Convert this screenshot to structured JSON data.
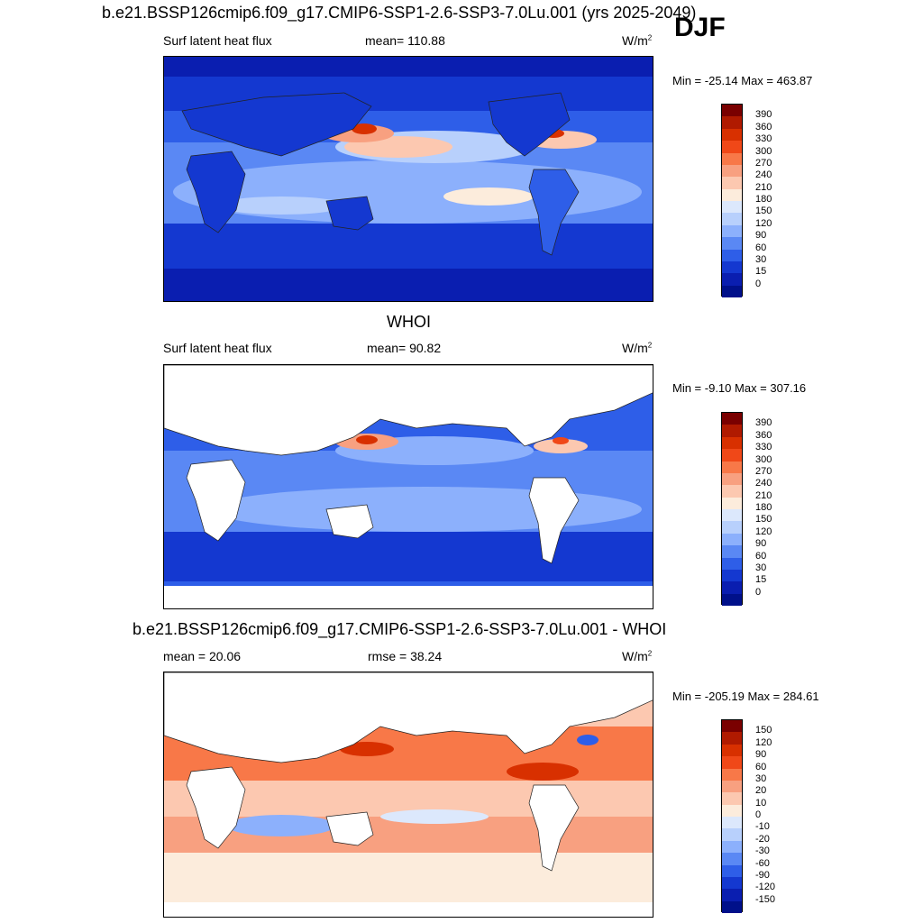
{
  "header": {
    "title": "b.e21.BSSP126cmip6.f09_g17.CMIP6-SSP1-2.6-SSP3-7.0Lu.001 (yrs 2025-2049)",
    "season": "DJF"
  },
  "panels": [
    {
      "id": "model",
      "left_label": "Surf latent heat flux",
      "center_label": "mean= 110.88",
      "units": "W/m",
      "units_sup": "2",
      "minmax": "Min = -25.14 Max = 463.87",
      "colorbar_ticks": [
        "390",
        "360",
        "330",
        "300",
        "270",
        "240",
        "210",
        "180",
        "150",
        "120",
        "90",
        "60",
        "30",
        "15",
        "0"
      ],
      "colorbar_colors": [
        "#7a0000",
        "#b01a00",
        "#d83000",
        "#f04818",
        "#f87848",
        "#f8a080",
        "#fcc8b0",
        "#fcecdc",
        "#dce8fc",
        "#b8d0fc",
        "#8cb0fc",
        "#5a88f4",
        "#2e5ee8",
        "#1438d0",
        "#0a1eb0",
        "#00108a"
      ]
    },
    {
      "id": "obs",
      "title": "WHOI",
      "left_label": "Surf latent heat flux",
      "center_label": "mean=  90.82",
      "units": "W/m",
      "units_sup": "2",
      "minmax": "Min =  -9.10 Max = 307.16",
      "colorbar_ticks": [
        "390",
        "360",
        "330",
        "300",
        "270",
        "240",
        "210",
        "180",
        "150",
        "120",
        "90",
        "60",
        "30",
        "15",
        "0"
      ],
      "colorbar_colors": [
        "#7a0000",
        "#b01a00",
        "#d83000",
        "#f04818",
        "#f87848",
        "#f8a080",
        "#fcc8b0",
        "#fcecdc",
        "#dce8fc",
        "#b8d0fc",
        "#8cb0fc",
        "#5a88f4",
        "#2e5ee8",
        "#1438d0",
        "#0a1eb0",
        "#00108a"
      ]
    },
    {
      "id": "diff",
      "title": "b.e21.BSSP126cmip6.f09_g17.CMIP6-SSP1-2.6-SSP3-7.0Lu.001 - WHOI",
      "left_label": "mean =  20.06",
      "center_label": "rmse =  38.24",
      "units": "W/m",
      "units_sup": "2",
      "minmax": "Min = -205.19 Max = 284.61",
      "colorbar_ticks": [
        "150",
        "120",
        "90",
        "60",
        "30",
        "20",
        "10",
        "0",
        "-10",
        "-20",
        "-30",
        "-60",
        "-90",
        "-120",
        "-150"
      ],
      "colorbar_colors": [
        "#7a0000",
        "#b01a00",
        "#d83000",
        "#f04818",
        "#f87848",
        "#f8a080",
        "#fcc8b0",
        "#fcecdc",
        "#dce8fc",
        "#b8d0fc",
        "#8cb0fc",
        "#5a88f4",
        "#2e5ee8",
        "#1438d0",
        "#0a1eb0",
        "#00108a"
      ]
    }
  ],
  "chart_data": [
    {
      "type": "heatmap",
      "title": "b.e21.BSSP126cmip6.f09_g17.CMIP6-SSP1-2.6-SSP3-7.0Lu.001 (yrs 2025-2049)",
      "variable": "Surf latent heat flux",
      "season": "DJF",
      "units": "W/m2",
      "mean": 110.88,
      "min": -25.14,
      "max": 463.87,
      "contour_levels": [
        0,
        15,
        30,
        60,
        90,
        120,
        150,
        180,
        210,
        240,
        270,
        300,
        330,
        360,
        390
      ]
    },
    {
      "type": "heatmap",
      "title": "WHOI",
      "variable": "Surf latent heat flux",
      "units": "W/m2",
      "mean": 90.82,
      "min": -9.1,
      "max": 307.16,
      "contour_levels": [
        0,
        15,
        30,
        60,
        90,
        120,
        150,
        180,
        210,
        240,
        270,
        300,
        330,
        360,
        390
      ]
    },
    {
      "type": "heatmap",
      "title": "b.e21.BSSP126cmip6.f09_g17.CMIP6-SSP1-2.6-SSP3-7.0Lu.001 - WHOI",
      "units": "W/m2",
      "mean": 20.06,
      "rmse": 38.24,
      "min": -205.19,
      "max": 284.61,
      "contour_levels": [
        -150,
        -120,
        -90,
        -60,
        -30,
        -20,
        -10,
        0,
        10,
        20,
        30,
        60,
        90,
        120,
        150
      ]
    }
  ]
}
